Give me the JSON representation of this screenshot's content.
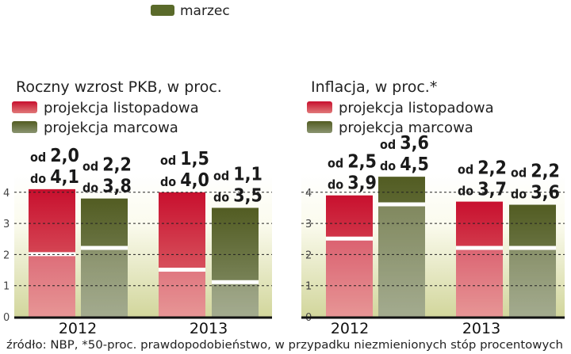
{
  "top_legend": {
    "label": "marzec",
    "color": "#5a6a2a"
  },
  "colors": {
    "red_top": "#c8102e",
    "red_bottom": "#e07070",
    "green_top": "#56602a",
    "green_bottom": "#8a9470",
    "bg_bottom": "#d4d8a0",
    "bg_top": "#ffffff"
  },
  "chart_data": [
    {
      "type": "bar",
      "title": "Roczny wzrost PKB, w proc.",
      "legend": [
        "projekcja listopadowa",
        "projekcja marcowa"
      ],
      "categories": [
        "2012",
        "2013"
      ],
      "ylim": [
        0,
        4
      ],
      "yticks": [
        "0",
        "1",
        "2",
        "3",
        "4"
      ],
      "grid": true,
      "series": [
        {
          "name": "projekcja listopadowa",
          "ranges": [
            [
              2.0,
              4.1
            ],
            [
              1.5,
              4.0
            ]
          ]
        },
        {
          "name": "projekcja marcowa",
          "ranges": [
            [
              2.2,
              3.8
            ],
            [
              1.1,
              3.5
            ]
          ]
        }
      ],
      "labels": [
        [
          [
            "od",
            "2,0",
            "do",
            "4,1"
          ],
          [
            "od",
            "1,5",
            "do",
            "4,0"
          ]
        ],
        [
          [
            "od",
            "2,2",
            "do",
            "3,8"
          ],
          [
            "od",
            "1,1",
            "do",
            "3,5"
          ]
        ]
      ]
    },
    {
      "type": "bar",
      "title": "Inflacja, w proc.*",
      "legend": [
        "projekcja listopadowa",
        "projekcja marcowa"
      ],
      "categories": [
        "2012",
        "2013"
      ],
      "ylim": [
        0,
        4
      ],
      "yticks": [
        "0",
        "1",
        "2",
        "3",
        "4"
      ],
      "grid": true,
      "series": [
        {
          "name": "projekcja listopadowa",
          "ranges": [
            [
              2.5,
              3.9
            ],
            [
              2.2,
              3.7
            ]
          ]
        },
        {
          "name": "projekcja marcowa",
          "ranges": [
            [
              3.6,
              4.5
            ],
            [
              2.2,
              3.6
            ]
          ]
        }
      ],
      "labels": [
        [
          [
            "od",
            "2,5",
            "do",
            "3,9"
          ],
          [
            "od",
            "2,2",
            "do",
            "3,7"
          ]
        ],
        [
          [
            "od",
            "3,6",
            "do",
            "4,5"
          ],
          [
            "od",
            "2,2",
            "do",
            "3,6"
          ]
        ]
      ]
    }
  ],
  "footer": "źródło: NBP, *50-proc. prawdopodobieństwo, w przypadku niezmienionych stóp procentowych"
}
